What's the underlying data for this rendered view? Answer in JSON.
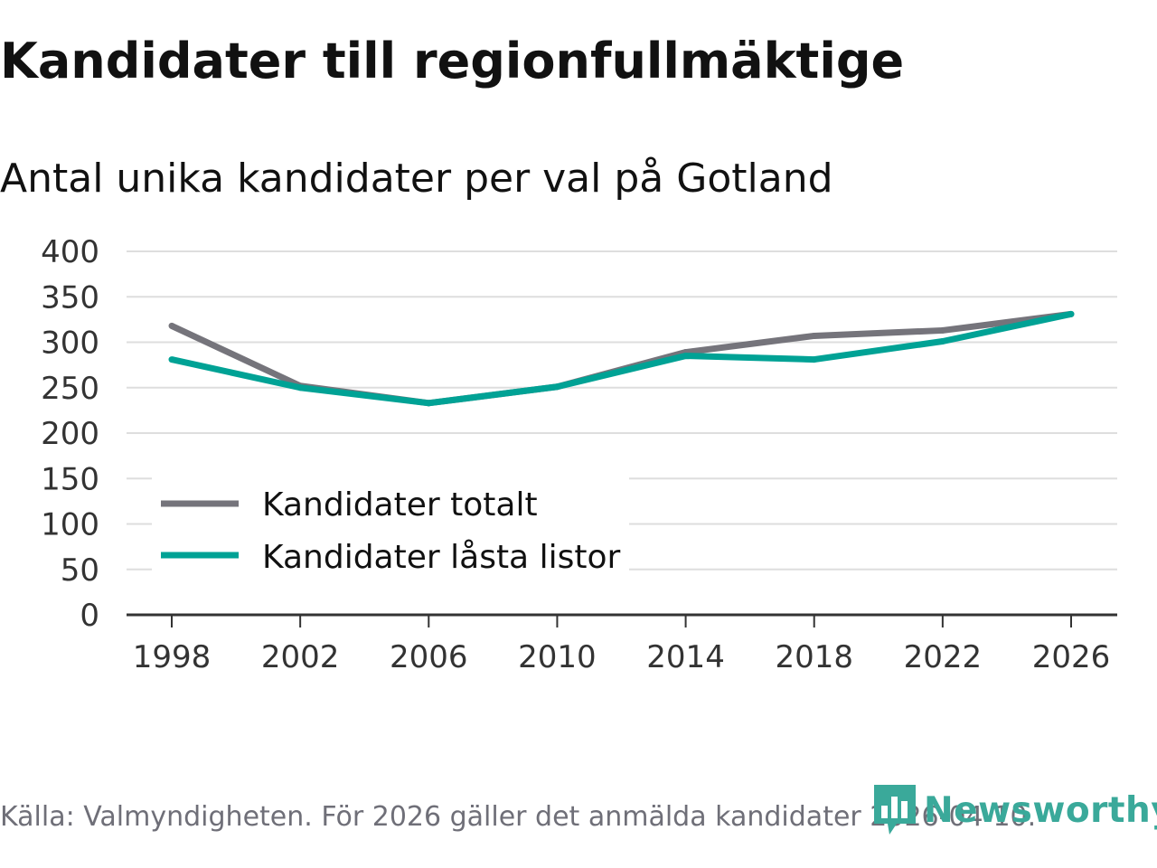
{
  "header": {
    "title": "Kandidater till regionfullmäktige",
    "subtitle": "Antal unika kandidater per val på Gotland"
  },
  "chart_data": {
    "type": "line",
    "title": "Kandidater till regionfullmäktige",
    "subtitle": "Antal unika kandidater per val på Gotland",
    "xlabel": "",
    "ylabel": "",
    "categories": [
      "1998",
      "2002",
      "2006",
      "2010",
      "2014",
      "2018",
      "2022",
      "2026"
    ],
    "series": [
      {
        "name": "Kandidater totalt",
        "color": "#75747b",
        "values": [
          318,
          252,
          233,
          251,
          289,
          307,
          313,
          331
        ]
      },
      {
        "name": "Kandidater låsta listor",
        "color": "#00a295",
        "values": [
          281,
          250,
          233,
          251,
          285,
          281,
          301,
          331
        ]
      }
    ],
    "ylim": [
      0,
      400
    ],
    "yticks": [
      "0",
      "50",
      "100",
      "150",
      "200",
      "250",
      "300",
      "350",
      "400"
    ],
    "grid": true,
    "legend_position": "bottom-left"
  },
  "footer": {
    "source": "Källa: Valmyndigheten. För 2026 gäller det anmälda kandidater 2026-04-10."
  },
  "brand": {
    "name": "Newsworthy",
    "icon": "bar-chart-speech-bubble-icon",
    "color": "#3aa99a"
  }
}
